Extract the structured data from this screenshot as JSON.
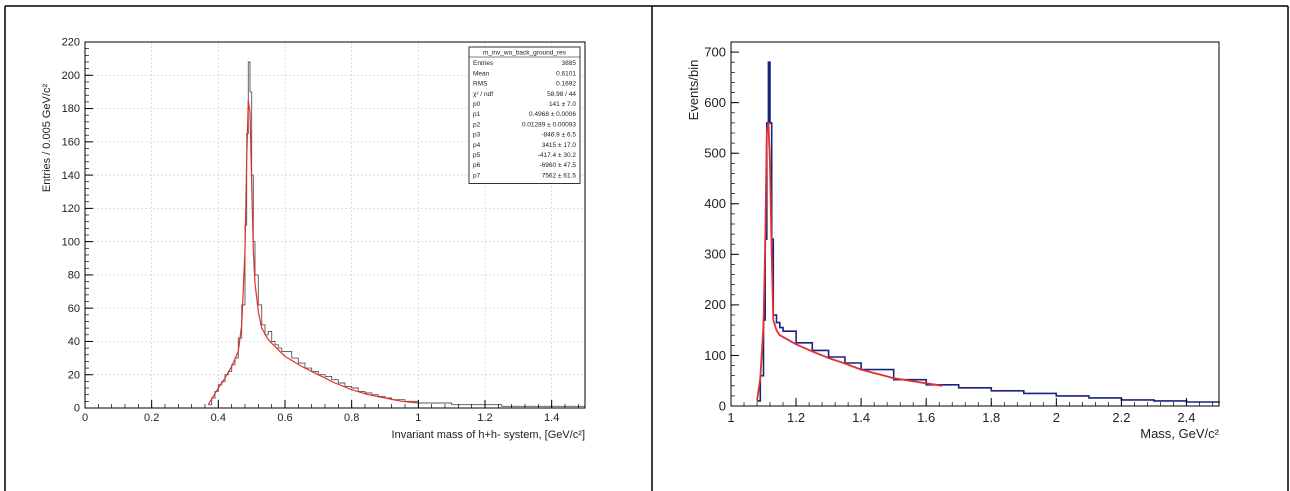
{
  "chart_data": [
    {
      "type": "histogram",
      "xlabel": "Invariant mass of h+h- system, [GeV/c²]",
      "ylabel": "Entries / 0.005 GeV/c²",
      "xlim": [
        0,
        1.5
      ],
      "ylim": [
        0,
        220
      ],
      "x_ticks": [
        "0",
        "0.2",
        "0.4",
        "0.6",
        "0.8",
        "1",
        "1.2",
        "1.4"
      ],
      "y_ticks": [
        "0",
        "20",
        "40",
        "60",
        "80",
        "100",
        "120",
        "140",
        "160",
        "180",
        "200",
        "220"
      ],
      "grid": true,
      "colors": {
        "data": "#555555",
        "fit": "#e03030"
      },
      "stats_box": {
        "title": "m_inv_wo_back_ground_res",
        "rows": [
          {
            "label": "Entries",
            "value": "3885"
          },
          {
            "label": "Mean",
            "value": "0.6101"
          },
          {
            "label": "RMS",
            "value": "0.1692"
          },
          {
            "label": "χ² / ndf",
            "value": "58.98 / 44"
          },
          {
            "label": "p0",
            "value": "141 ± 7.0"
          },
          {
            "label": "p1",
            "value": "0.4968 ± 0.0006"
          },
          {
            "label": "p2",
            "value": "0.01289 ± 0.00093"
          },
          {
            "label": "p3",
            "value": "-846.9 ± 6.5"
          },
          {
            "label": "p4",
            "value": "3415 ± 17.0"
          },
          {
            "label": "p5",
            "value": "-417.4 ± 30.2"
          },
          {
            "label": "p6",
            "value": "-6960 ± 47.5"
          },
          {
            "label": "p7",
            "value": "7562 ± 61.5"
          }
        ]
      },
      "series": [
        {
          "kind": "histogram",
          "x": [
            0.37,
            0.38,
            0.39,
            0.4,
            0.41,
            0.42,
            0.43,
            0.44,
            0.45,
            0.46,
            0.47,
            0.48,
            0.485,
            0.49,
            0.495,
            0.5,
            0.505,
            0.51,
            0.52,
            0.53,
            0.54,
            0.55,
            0.56,
            0.57,
            0.58,
            0.59,
            0.6,
            0.62,
            0.64,
            0.66,
            0.68,
            0.7,
            0.72,
            0.74,
            0.76,
            0.78,
            0.8,
            0.82,
            0.84,
            0.86,
            0.88,
            0.9,
            0.92,
            0.94,
            0.96,
            0.98,
            1.0,
            1.05,
            1.1,
            1.15,
            1.2,
            1.25,
            1.3,
            1.35,
            1.4,
            1.45,
            1.5
          ],
          "y": [
            2,
            6,
            10,
            14,
            16,
            20,
            22,
            26,
            30,
            42,
            62,
            110,
            165,
            208,
            190,
            140,
            100,
            80,
            62,
            50,
            44,
            46,
            40,
            38,
            36,
            34,
            34,
            30,
            27,
            24,
            22,
            20,
            19,
            17,
            15,
            13,
            12,
            10,
            9,
            8,
            7,
            6,
            5,
            5,
            4,
            4,
            3,
            3,
            2,
            2,
            2,
            1,
            1,
            1,
            1,
            1,
            0
          ]
        },
        {
          "kind": "fit",
          "x": [
            0.37,
            0.4,
            0.42,
            0.44,
            0.46,
            0.47,
            0.48,
            0.485,
            0.49,
            0.495,
            0.5,
            0.505,
            0.51,
            0.52,
            0.53,
            0.55,
            0.58,
            0.6,
            0.65,
            0.7,
            0.75,
            0.8,
            0.85,
            0.9,
            0.95,
            1.0
          ],
          "y": [
            2,
            12,
            18,
            25,
            34,
            50,
            95,
            150,
            185,
            178,
            135,
            95,
            75,
            58,
            48,
            41,
            35,
            31,
            25,
            20,
            15,
            11,
            8,
            6,
            4,
            3
          ]
        }
      ]
    },
    {
      "type": "histogram",
      "xlabel": "Mass, GeV/c²",
      "ylabel": "Events/bin",
      "xlim": [
        1.0,
        2.5
      ],
      "ylim": [
        0,
        720
      ],
      "x_ticks": [
        "1",
        "1.2",
        "1.4",
        "1.6",
        "1.8",
        "2",
        "2.2",
        "2.4"
      ],
      "y_ticks": [
        "0",
        "100",
        "200",
        "300",
        "400",
        "500",
        "600",
        "700"
      ],
      "grid": false,
      "colors": {
        "data": "#1a237e",
        "fit": "#e03030"
      },
      "series": [
        {
          "kind": "histogram",
          "x": [
            1.08,
            1.09,
            1.1,
            1.105,
            1.11,
            1.115,
            1.12,
            1.125,
            1.13,
            1.14,
            1.15,
            1.16,
            1.2,
            1.25,
            1.3,
            1.35,
            1.4,
            1.5,
            1.6,
            1.7,
            1.8,
            1.9,
            2.0,
            2.1,
            2.2,
            2.3,
            2.4,
            2.5
          ],
          "y": [
            10,
            60,
            170,
            330,
            560,
            680,
            560,
            330,
            180,
            165,
            155,
            148,
            125,
            110,
            97,
            85,
            72,
            52,
            42,
            36,
            30,
            25,
            20,
            16,
            12,
            10,
            8,
            6
          ]
        },
        {
          "kind": "fit",
          "x": [
            1.08,
            1.09,
            1.1,
            1.105,
            1.11,
            1.115,
            1.12,
            1.125,
            1.13,
            1.14,
            1.15,
            1.2,
            1.25,
            1.3,
            1.35,
            1.4,
            1.5,
            1.6,
            1.65
          ],
          "y": [
            10,
            55,
            160,
            320,
            540,
            560,
            480,
            300,
            170,
            150,
            140,
            122,
            108,
            95,
            84,
            72,
            55,
            45,
            40
          ]
        }
      ]
    }
  ]
}
